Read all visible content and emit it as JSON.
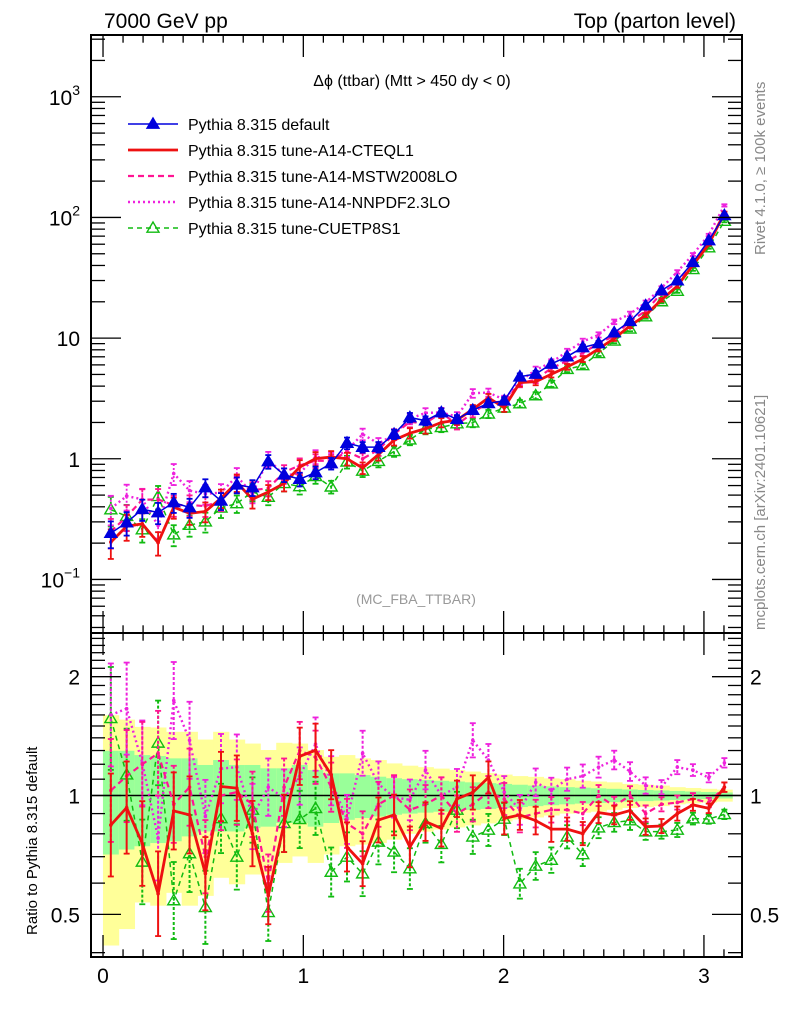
{
  "header": {
    "left": "7000 GeV pp",
    "right": "Top (parton level)"
  },
  "side_labels": {
    "rivet": "Rivet 4.1.0, ≥ 100k events",
    "mcplots": "mcplots.cern.ch [arXiv:2401.10621]"
  },
  "chart_data": [
    {
      "panel": "main",
      "type": "line",
      "title": "Δϕ (ttbar) (Mtt > 450 dy < 0)",
      "analysis_label": "(MC_FBA_TTBAR)",
      "xlabel": "",
      "ylabel": "",
      "yscale": "log",
      "xlim": [
        -0.06,
        3.19
      ],
      "ylim": [
        0.036,
        3250
      ],
      "x_ticks": [
        0,
        1,
        2,
        3
      ],
      "x_tick_labels": [
        "0",
        "1",
        "2",
        "3"
      ],
      "y_ticks": [
        0.1,
        1,
        10,
        100,
        1000
      ],
      "y_tick_labels": [
        "10^-1",
        "1",
        "10",
        "10^2",
        "10^3"
      ],
      "legend_position": "top-left",
      "x": [
        0.039,
        0.118,
        0.196,
        0.275,
        0.353,
        0.432,
        0.511,
        0.589,
        0.668,
        0.746,
        0.825,
        0.904,
        0.982,
        1.061,
        1.139,
        1.218,
        1.296,
        1.375,
        1.453,
        1.532,
        1.61,
        1.689,
        1.767,
        1.846,
        1.924,
        2.003,
        2.081,
        2.16,
        2.238,
        2.317,
        2.395,
        2.474,
        2.552,
        2.631,
        2.709,
        2.788,
        2.867,
        2.945,
        3.024,
        3.102
      ],
      "series": [
        {
          "name": "Pythia 8.315 default",
          "color": "#0000dd",
          "style": "solid-triangle",
          "values": [
            0.242,
            0.296,
            0.382,
            0.359,
            0.434,
            0.395,
            0.578,
            0.448,
            0.609,
            0.578,
            0.95,
            0.737,
            0.678,
            0.77,
            0.915,
            1.35,
            1.25,
            1.25,
            1.6,
            2.2,
            2.07,
            2.42,
            2.13,
            2.53,
            2.88,
            3.03,
            4.79,
            5.04,
            6.11,
            7.03,
            8.37,
            9.02,
            11.1,
            13.8,
            18.6,
            24.8,
            30.0,
            42.5,
            64.5,
            104
          ],
          "rel_err": [
            0.25,
            0.22,
            0.2,
            0.2,
            0.18,
            0.18,
            0.17,
            0.16,
            0.15,
            0.15,
            0.13,
            0.13,
            0.13,
            0.12,
            0.11,
            0.11,
            0.1,
            0.1,
            0.09,
            0.09,
            0.085,
            0.08,
            0.08,
            0.075,
            0.07,
            0.07,
            0.065,
            0.06,
            0.055,
            0.05,
            0.05,
            0.045,
            0.04,
            0.04,
            0.035,
            0.03,
            0.03,
            0.025,
            0.02,
            0.02
          ]
        },
        {
          "name": "Pythia 8.315 tune-A14-CTEQL1",
          "color": "#ee1111",
          "style": "solid-thick",
          "values": [
            0.204,
            0.276,
            0.289,
            0.202,
            0.397,
            0.353,
            0.366,
            0.472,
            0.636,
            0.463,
            0.53,
            0.626,
            0.852,
            1.003,
            1.033,
            1.0,
            0.84,
            1.084,
            1.429,
            1.63,
            1.778,
            1.999,
            2.09,
            2.576,
            3.2,
            2.651,
            4.277,
            4.355,
            5.022,
            5.779,
            6.704,
            8.163,
            9.912,
            12.64,
            15.51,
            20.76,
            27.0,
            40.25,
            59.86,
            109.2
          ],
          "ratio": [
            0.842,
            0.932,
            0.756,
            0.564,
            0.914,
            0.893,
            0.634,
            1.054,
            1.044,
            0.801,
            0.558,
            0.85,
            1.257,
            1.302,
            1.129,
            0.741,
            0.672,
            0.867,
            0.893,
            0.741,
            0.859,
            0.826,
            0.981,
            1.018,
            1.111,
            0.875,
            0.893,
            0.864,
            0.822,
            0.822,
            0.801,
            0.905,
            0.893,
            0.916,
            0.834,
            0.837,
            0.9,
            0.947,
            0.928,
            1.05
          ]
        },
        {
          "name": "Pythia 8.315 tune-A14-MSTW2008LO",
          "color": "#ff1493",
          "style": "dashed",
          "values": [
            0.249,
            0.332,
            0.458,
            0.46,
            0.412,
            0.415,
            0.405,
            0.448,
            0.621,
            0.549,
            0.57,
            0.774,
            0.881,
            0.963,
            0.961,
            1.148,
            1.0,
            1.188,
            1.6,
            2.024,
            1.967,
            2.42,
            1.917,
            2.404,
            2.938,
            2.969,
            4.215,
            4.536,
            5.621,
            6.468,
            7.533,
            9.02,
            10.43,
            13.8,
            16.74,
            23.56,
            28.8,
            41.65,
            61.92,
            109.2
          ],
          "ratio": [
            1.03,
            1.12,
            1.2,
            1.28,
            0.95,
            1.05,
            0.7,
            1.0,
            1.02,
            0.95,
            0.6,
            1.05,
            1.3,
            1.25,
            1.05,
            0.85,
            0.8,
            0.95,
            1.0,
            0.92,
            0.95,
            1.0,
            0.9,
            0.95,
            1.02,
            0.98,
            0.88,
            0.9,
            0.92,
            0.92,
            0.9,
            1.0,
            0.94,
            1.0,
            0.9,
            0.95,
            0.96,
            0.98,
            0.96,
            1.05
          ]
        },
        {
          "name": "Pythia 8.315 tune-A14-NNPDF2.3LO",
          "color": "#ee22dd",
          "style": "dotted",
          "values": [
            0.387,
            0.491,
            0.462,
            0.28,
            0.755,
            0.545,
            0.512,
            0.524,
            0.719,
            0.512,
            0.998,
            0.726,
            0.759,
            1.04,
            0.997,
            1.175,
            1.6,
            1.338,
            1.584,
            2.145,
            2.401,
            2.42,
            2.237,
            3.491,
            3.542,
            3.091,
            4.407,
            5.443,
            6.293,
            7.733,
            9.374,
            10.64,
            13.65,
            15.87,
            19.72,
            26.04,
            35.4,
            49.3,
            71.6,
            125.8
          ],
          "ratio": [
            1.6,
            1.66,
            1.21,
            0.78,
            1.74,
            1.38,
            0.885,
            1.17,
            1.18,
            0.885,
            1.05,
            0.985,
            1.12,
            1.35,
            1.09,
            0.87,
            1.28,
            1.07,
            0.99,
            0.975,
            1.16,
            1.0,
            1.05,
            1.38,
            1.23,
            1.02,
            0.92,
            1.08,
            1.03,
            1.1,
            1.12,
            1.18,
            1.23,
            1.15,
            1.06,
            1.05,
            1.18,
            1.16,
            1.11,
            1.21
          ]
        },
        {
          "name": "Pythia 8.315 tune-CUETP8S1",
          "color": "#11bb11",
          "style": "dashed-open-triangle",
          "values": [
            0.379,
            0.334,
            0.259,
            0.488,
            0.235,
            0.282,
            0.301,
            0.392,
            0.426,
            0.531,
            0.481,
            0.626,
            0.59,
            0.715,
            0.586,
            0.944,
            0.793,
            0.954,
            1.152,
            1.437,
            1.76,
            1.822,
            1.957,
            1.989,
            2.356,
            2.642,
            2.864,
            3.342,
            4.191,
            5.526,
            5.934,
            7.478,
            9.491,
            11.92,
            15.07,
            20.09,
            24.54,
            37.15,
            56.24,
            93.18
          ],
          "ratio": [
            1.568,
            1.129,
            0.679,
            1.359,
            0.542,
            0.713,
            0.521,
            0.875,
            0.699,
            0.919,
            0.506,
            0.85,
            0.87,
            0.928,
            0.64,
            0.699,
            0.634,
            0.763,
            0.72,
            0.653,
            0.85,
            0.753,
            0.919,
            0.786,
            0.818,
            0.872,
            0.598,
            0.663,
            0.686,
            0.786,
            0.709,
            0.829,
            0.855,
            0.864,
            0.81,
            0.81,
            0.818,
            0.874,
            0.872,
            0.896
          ]
        }
      ]
    },
    {
      "panel": "ratio",
      "type": "line",
      "ylabel": "Ratio to Pythia 8.315 default",
      "yscale": "log",
      "xlim": [
        -0.06,
        3.19
      ],
      "ylim": [
        0.39,
        2.58
      ],
      "y_ticks": [
        0.5,
        1,
        2
      ],
      "y_tick_labels": [
        "0.5",
        "1",
        "2"
      ],
      "reference_line": 1,
      "band_colors": {
        "outer": "#ffff99",
        "inner": "#99ff99"
      },
      "band_outer_upper": [
        1.597,
        1.557,
        1.492,
        1.487,
        1.45,
        1.45,
        1.386,
        1.45,
        1.386,
        1.354,
        1.304,
        1.36,
        1.354,
        1.304,
        1.254,
        1.266,
        1.242,
        1.23,
        1.206,
        1.19,
        1.18,
        1.17,
        1.16,
        1.15,
        1.14,
        1.13,
        1.12,
        1.115,
        1.105,
        1.1,
        1.09,
        1.085,
        1.08,
        1.07,
        1.065,
        1.06,
        1.05,
        1.045,
        1.04,
        1.035
      ],
      "band_inner_upper": [
        1.298,
        1.298,
        1.266,
        1.259,
        1.242,
        1.242,
        1.195,
        1.23,
        1.195,
        1.195,
        1.172,
        1.172,
        1.195,
        1.16,
        1.138,
        1.138,
        1.127,
        1.116,
        1.106,
        1.1,
        1.095,
        1.09,
        1.085,
        1.08,
        1.075,
        1.07,
        1.065,
        1.06,
        1.055,
        1.05,
        1.047,
        1.043,
        1.04,
        1.036,
        1.033,
        1.03,
        1.027,
        1.024,
        1.021,
        1.018
      ],
      "band_inner_lower": [
        0.709,
        0.73,
        0.744,
        0.758,
        0.766,
        0.788,
        0.811,
        0.811,
        0.811,
        0.827,
        0.834,
        0.852,
        0.852,
        0.834,
        0.852,
        0.868,
        0.877,
        0.885,
        0.894,
        0.9,
        0.905,
        0.91,
        0.915,
        0.92,
        0.925,
        0.93,
        0.935,
        0.94,
        0.945,
        0.95,
        0.954,
        0.958,
        0.962,
        0.965,
        0.968,
        0.971,
        0.974,
        0.977,
        0.98,
        0.983
      ],
      "band_outer_lower": [
        0.417,
        0.459,
        0.536,
        0.526,
        0.567,
        0.526,
        0.557,
        0.619,
        0.596,
        0.631,
        0.631,
        0.675,
        0.701,
        0.675,
        0.709,
        0.744,
        0.751,
        0.758,
        0.773,
        0.8,
        0.81,
        0.82,
        0.83,
        0.84,
        0.85,
        0.86,
        0.87,
        0.88,
        0.89,
        0.9,
        0.905,
        0.91,
        0.92,
        0.93,
        0.935,
        0.94,
        0.95,
        0.955,
        0.96,
        0.965
      ]
    }
  ]
}
